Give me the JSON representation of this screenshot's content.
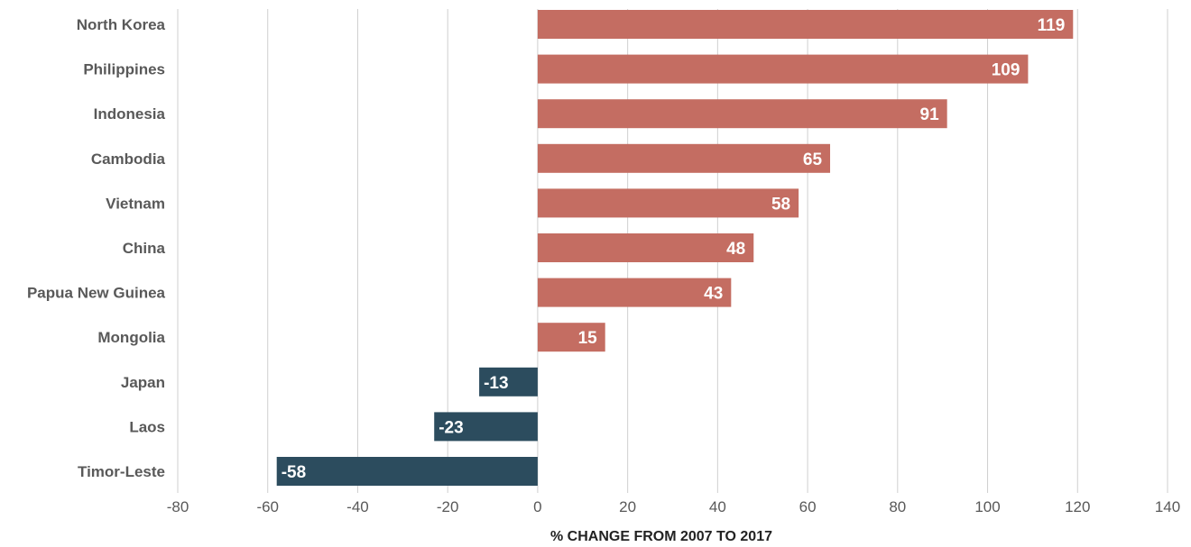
{
  "chart_data": {
    "type": "bar",
    "orientation": "horizontal",
    "categories": [
      "North Korea",
      "Philippines",
      "Indonesia",
      "Cambodia",
      "Vietnam",
      "China",
      "Papua New Guinea",
      "Mongolia",
      "Japan",
      "Laos",
      "Timor-Leste"
    ],
    "values": [
      119,
      109,
      91,
      65,
      58,
      48,
      43,
      15,
      -13,
      -23,
      -58
    ],
    "labels": [
      "119",
      "109",
      "91",
      "65",
      "58",
      "48",
      "43",
      "15",
      "-13",
      "-23",
      "-58"
    ],
    "xlabel": "% CHANGE FROM 2007 TO 2017",
    "xlim": [
      -80,
      140
    ],
    "xticks": [
      -80,
      -60,
      -40,
      -20,
      0,
      20,
      40,
      60,
      80,
      100,
      120,
      140
    ],
    "grid": "vertical",
    "colors": {
      "positive": "#c46d62",
      "negative": "#2c4c5e"
    }
  }
}
